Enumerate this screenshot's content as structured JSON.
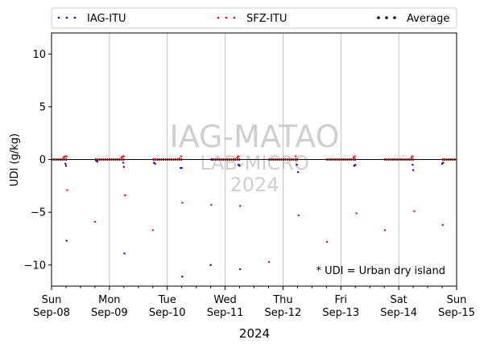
{
  "chart_data": {
    "type": "scatter",
    "ylabel": "UDI (g/kg)",
    "xlabel": "2024",
    "ylim": [
      -12,
      12
    ],
    "xlim": [
      "2024-09-08",
      "2024-09-15"
    ],
    "yticks": [
      -10,
      -5,
      0,
      5,
      10
    ],
    "xticks": [
      {
        "day": "Sun",
        "date": "Sep-08"
      },
      {
        "day": "Mon",
        "date": "Sep-09"
      },
      {
        "day": "Tue",
        "date": "Sep-10"
      },
      {
        "day": "Wed",
        "date": "Sep-11"
      },
      {
        "day": "Thu",
        "date": "Sep-12"
      },
      {
        "day": "Fri",
        "date": "Sep-13"
      },
      {
        "day": "Sat",
        "date": "Sep-14"
      },
      {
        "day": "Sun",
        "date": "Sep-15"
      }
    ],
    "grid": "vertical",
    "legend": {
      "placement": "top",
      "entries": [
        {
          "name": "IAG-ITU",
          "color": "#0000ff"
        },
        {
          "name": "SFZ-ITU",
          "color": "#ff0000"
        },
        {
          "name": "Average",
          "color": "#000000"
        }
      ]
    },
    "watermark": {
      "line1": "IAG-MATAO",
      "line2": "LAB-MICRO",
      "line3": "2024"
    },
    "annotation": "* UDI = Urban dry island",
    "series": [
      {
        "name": "IAG-ITU",
        "color": "#0000ff",
        "points": [
          [
            0.24,
            -0.4
          ],
          [
            0.25,
            -0.6
          ],
          [
            0.26,
            -7.7
          ],
          [
            0.77,
            -0.1
          ],
          [
            0.79,
            -0.2
          ],
          [
            1.24,
            -0.3
          ],
          [
            1.25,
            -0.7
          ],
          [
            1.26,
            -8.9
          ],
          [
            1.77,
            -0.3
          ],
          [
            1.79,
            -0.4
          ],
          [
            2.23,
            -0.8
          ],
          [
            2.25,
            -0.8
          ],
          [
            2.26,
            -11.1
          ],
          [
            2.75,
            -10.0
          ],
          [
            2.77,
            0.0
          ],
          [
            3.23,
            -0.5
          ],
          [
            3.25,
            -0.6
          ],
          [
            3.26,
            -10.4
          ],
          [
            4.24,
            -0.5
          ],
          [
            4.26,
            -1.2
          ],
          [
            5.23,
            -0.6
          ],
          [
            5.25,
            -0.5
          ],
          [
            6.24,
            -0.5
          ],
          [
            6.25,
            -1.0
          ],
          [
            6.75,
            -0.4
          ],
          [
            6.77,
            -0.3
          ]
        ]
      },
      {
        "name": "SFZ-ITU",
        "color": "#ff0000",
        "points": [
          [
            0.21,
            0.2
          ],
          [
            0.23,
            0.3
          ],
          [
            0.26,
            0.3
          ],
          [
            0.27,
            -2.9
          ],
          [
            0.75,
            -5.9
          ],
          [
            0.77,
            0.0
          ],
          [
            1.21,
            0.2
          ],
          [
            1.23,
            0.3
          ],
          [
            1.25,
            0.3
          ],
          [
            1.27,
            -3.4
          ],
          [
            1.75,
            -6.7
          ],
          [
            1.77,
            0.0
          ],
          [
            2.21,
            0.1
          ],
          [
            2.24,
            0.3
          ],
          [
            2.26,
            -4.1
          ],
          [
            2.76,
            -4.3
          ],
          [
            3.21,
            0.2
          ],
          [
            3.23,
            0.3
          ],
          [
            3.26,
            -4.4
          ],
          [
            3.76,
            -9.7
          ],
          [
            4.22,
            0.3
          ],
          [
            4.27,
            -5.3
          ],
          [
            4.76,
            -7.8
          ],
          [
            5.22,
            0.2
          ],
          [
            5.24,
            0.3
          ],
          [
            5.27,
            -5.1
          ],
          [
            5.76,
            -6.7
          ],
          [
            6.22,
            0.2
          ],
          [
            6.24,
            0.3
          ],
          [
            6.27,
            -4.9
          ],
          [
            6.76,
            -6.2
          ],
          [
            6.78,
            0.0
          ]
        ]
      },
      {
        "name": "Average",
        "color": "#000000",
        "segments": [
          [
            0.0,
            0.27
          ],
          [
            0.75,
            1.27
          ],
          [
            1.75,
            2.27
          ],
          [
            2.75,
            3.27
          ],
          [
            3.75,
            4.27
          ],
          [
            4.75,
            5.27
          ],
          [
            5.75,
            6.27
          ],
          [
            6.75,
            7.0
          ]
        ]
      }
    ]
  }
}
